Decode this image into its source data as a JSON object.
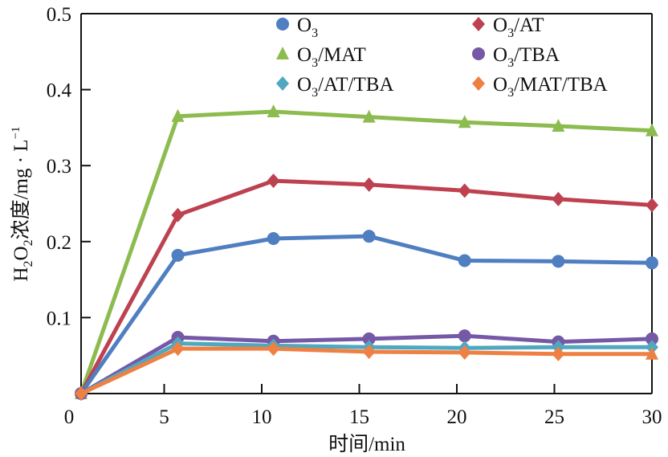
{
  "chart_data": {
    "type": "line",
    "title": "",
    "xlabel": "时间/min",
    "ylabel": {
      "prefix": "H",
      "sub1": "2",
      "mid": "O",
      "sub2": "2",
      "rest": "浓度/mg · L",
      "sup": "−1"
    },
    "xlim": [
      0,
      30
    ],
    "ylim": [
      0,
      0.5
    ],
    "xticks": [
      0,
      5,
      10,
      15,
      20,
      25,
      30
    ],
    "xtick_labels": [
      "0",
      "5",
      "10",
      "15",
      "20",
      "25",
      "30"
    ],
    "yticks": [
      0.1,
      0.2,
      0.3,
      0.4,
      0.5
    ],
    "ytick_labels": [
      "0.1",
      "0.2",
      "0.3",
      "0.4",
      "0.5"
    ],
    "grid": false,
    "legend_placement": "top-right",
    "x": [
      0.8,
      5.7,
      10.6,
      15.5,
      20.4,
      25.2,
      30
    ],
    "series": [
      {
        "name": "O3",
        "label_main": "O",
        "label_sub": "3",
        "label_rest": "",
        "color": "#4F7EC1",
        "marker": "circle",
        "values": [
          0,
          0.182,
          0.204,
          0.207,
          0.175,
          0.174,
          0.172
        ]
      },
      {
        "name": "O3/AT",
        "label_main": "O",
        "label_sub": "3",
        "label_rest": "/AT",
        "color": "#BE4150",
        "marker": "diamond",
        "values": [
          0,
          0.235,
          0.28,
          0.275,
          0.267,
          0.256,
          0.248
        ]
      },
      {
        "name": "O3/MAT",
        "label_main": "O",
        "label_sub": "3",
        "label_rest": "/MAT",
        "color": "#8CBB4F",
        "marker": "triangle",
        "values": [
          0,
          0.365,
          0.371,
          0.364,
          0.357,
          0.352,
          0.346
        ]
      },
      {
        "name": "O3/TBA",
        "label_main": "O",
        "label_sub": "3",
        "label_rest": "/TBA",
        "color": "#7558A6",
        "marker": "circle",
        "values": [
          0,
          0.074,
          0.069,
          0.072,
          0.076,
          0.068,
          0.072
        ]
      },
      {
        "name": "O3/AT/TBA",
        "label_main": "O",
        "label_sub": "3",
        "label_rest": "/AT/TBA",
        "color": "#4FA8C0",
        "marker": "diamond",
        "values": [
          0,
          0.066,
          0.063,
          0.061,
          0.06,
          0.061,
          0.061
        ]
      },
      {
        "name": "O3/MAT/TBA",
        "label_main": "O",
        "label_sub": "3",
        "label_rest": "/MAT/TBA",
        "color": "#EE8043",
        "marker": "diamond",
        "last_marker": "triangle",
        "values": [
          0,
          0.059,
          0.059,
          0.055,
          0.054,
          0.052,
          0.052
        ]
      }
    ],
    "origin_label": "0"
  }
}
